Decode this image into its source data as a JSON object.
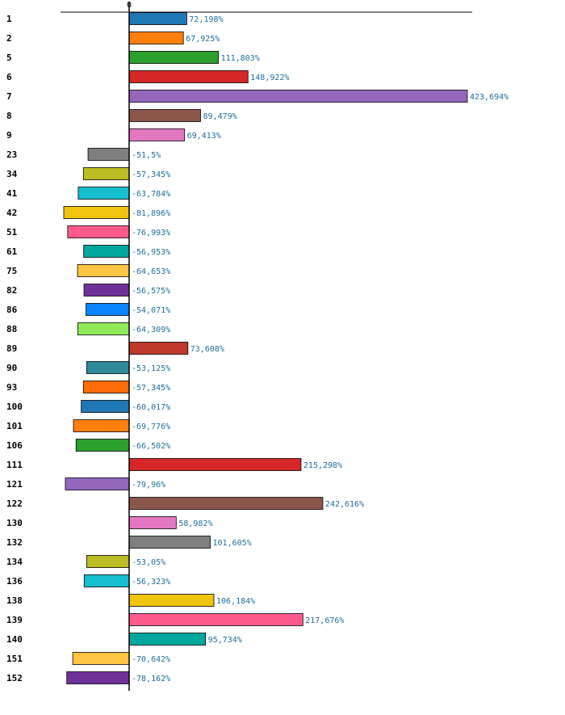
{
  "chart_data": {
    "type": "bar",
    "orientation": "horizontal",
    "axis_zero_label": "0",
    "categories": [
      "1",
      "2",
      "5",
      "6",
      "7",
      "8",
      "9",
      "23",
      "34",
      "41",
      "42",
      "51",
      "61",
      "75",
      "82",
      "86",
      "88",
      "89",
      "90",
      "93",
      "100",
      "101",
      "106",
      "111",
      "121",
      "122",
      "130",
      "132",
      "134",
      "136",
      "138",
      "139",
      "140",
      "151",
      "152"
    ],
    "values": [
      72.198,
      67.925,
      111.803,
      148.922,
      423.694,
      89.479,
      69.413,
      -51.5,
      -57.345,
      -63.784,
      -81.896,
      -76.993,
      -56.953,
      -64.653,
      -56.575,
      -54.071,
      -64.309,
      73.608,
      -53.125,
      -57.345,
      -60.017,
      -69.776,
      -66.502,
      215.298,
      -79.96,
      242.616,
      58.982,
      101.605,
      -53.05,
      -56.323,
      106.184,
      217.676,
      95.734,
      -70.642,
      -78.162
    ],
    "value_labels": [
      "72,198%",
      "67,925%",
      "111,803%",
      "148,922%",
      "423,694%",
      "89,479%",
      "69,413%",
      "-51,5%",
      "-57,345%",
      "-63,784%",
      "-81,896%",
      "-76,993%",
      "-56,953%",
      "-64,653%",
      "-56,575%",
      "-54,071%",
      "-64,309%",
      "73,608%",
      "-53,125%",
      "-57,345%",
      "-60,017%",
      "-69,776%",
      "-66,502%",
      "215,298%",
      "-79,96%",
      "242,616%",
      "58,982%",
      "101,605%",
      "-53,05%",
      "-56,323%",
      "106,184%",
      "217,676%",
      "95,734%",
      "-70,642%",
      "-78,162%"
    ],
    "colors": [
      "#1f77b4",
      "#ff7f0e",
      "#2ca02c",
      "#d62728",
      "#9467bd",
      "#8c564b",
      "#e377c2",
      "#7f7f7f",
      "#bcbd22",
      "#17becf",
      "#f1c40f",
      "#ff5a8c",
      "#00a79d",
      "#ffc542",
      "#6f3198",
      "#0a84ff",
      "#8fea57",
      "#c0392b",
      "#2e8b9a",
      "#ff6b08",
      "#1f77b4",
      "#ff7f0e",
      "#2ca02c",
      "#d62728",
      "#9467bd",
      "#8c564b",
      "#e377c2",
      "#7f7f7f",
      "#bcbd22",
      "#17becf",
      "#f1c40f",
      "#ff5a8c",
      "#00a79d",
      "#ffc542",
      "#6f3198"
    ],
    "xlim": [
      -86,
      430
    ],
    "unit": "%"
  }
}
